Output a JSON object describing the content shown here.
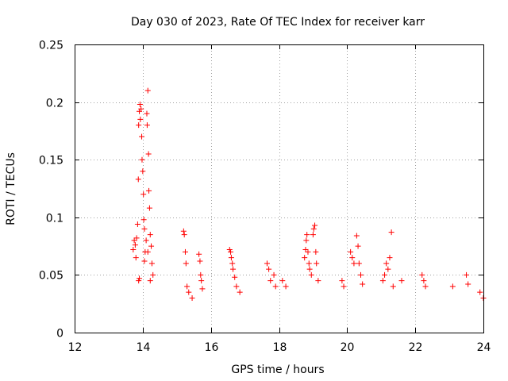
{
  "chart_data": {
    "type": "scatter",
    "title": "Day 030 of 2023, Rate Of TEC Index for receiver karr",
    "xlabel": "GPS time / hours",
    "ylabel": "ROTI / TECUs",
    "xlim": [
      12,
      24
    ],
    "ylim": [
      0,
      0.25
    ],
    "x_ticks": [
      "12",
      "14",
      "16",
      "18",
      "20",
      "22",
      "24"
    ],
    "y_ticks": [
      "0",
      "0.05",
      "0.1",
      "0.15",
      "0.2",
      "0.25"
    ],
    "grid": true,
    "marker": "plus",
    "series_color": "#ff0000",
    "series": [
      {
        "name": "ROTI",
        "points": [
          [
            13.72,
            0.072
          ],
          [
            13.75,
            0.08
          ],
          [
            13.78,
            0.076
          ],
          [
            13.8,
            0.065
          ],
          [
            13.82,
            0.082
          ],
          [
            13.85,
            0.094
          ],
          [
            13.87,
            0.133
          ],
          [
            13.88,
            0.18
          ],
          [
            13.9,
            0.192
          ],
          [
            13.92,
            0.198
          ],
          [
            13.93,
            0.185
          ],
          [
            13.95,
            0.194
          ],
          [
            13.97,
            0.17
          ],
          [
            13.98,
            0.15
          ],
          [
            14.0,
            0.14
          ],
          [
            14.02,
            0.12
          ],
          [
            14.03,
            0.098
          ],
          [
            14.05,
            0.09
          ],
          [
            14.07,
            0.07
          ],
          [
            14.1,
            0.08
          ],
          [
            14.12,
            0.19
          ],
          [
            14.13,
            0.18
          ],
          [
            14.15,
            0.21
          ],
          [
            14.17,
            0.155
          ],
          [
            14.18,
            0.123
          ],
          [
            14.2,
            0.108
          ],
          [
            14.22,
            0.085
          ],
          [
            14.25,
            0.075
          ],
          [
            14.27,
            0.06
          ],
          [
            14.3,
            0.05
          ],
          [
            13.88,
            0.045
          ],
          [
            13.9,
            0.047
          ],
          [
            14.05,
            0.062
          ],
          [
            14.15,
            0.07
          ],
          [
            14.22,
            0.045
          ],
          [
            15.2,
            0.088
          ],
          [
            15.22,
            0.085
          ],
          [
            15.25,
            0.07
          ],
          [
            15.27,
            0.06
          ],
          [
            15.3,
            0.04
          ],
          [
            15.35,
            0.035
          ],
          [
            15.45,
            0.03
          ],
          [
            15.65,
            0.068
          ],
          [
            15.68,
            0.062
          ],
          [
            15.7,
            0.05
          ],
          [
            15.72,
            0.045
          ],
          [
            15.75,
            0.038
          ],
          [
            16.55,
            0.072
          ],
          [
            16.58,
            0.07
          ],
          [
            16.6,
            0.065
          ],
          [
            16.63,
            0.06
          ],
          [
            16.65,
            0.055
          ],
          [
            16.7,
            0.048
          ],
          [
            16.75,
            0.04
          ],
          [
            16.85,
            0.035
          ],
          [
            17.65,
            0.06
          ],
          [
            17.7,
            0.055
          ],
          [
            17.75,
            0.045
          ],
          [
            17.85,
            0.05
          ],
          [
            17.9,
            0.04
          ],
          [
            18.1,
            0.045
          ],
          [
            18.2,
            0.04
          ],
          [
            18.75,
            0.065
          ],
          [
            18.78,
            0.072
          ],
          [
            18.8,
            0.08
          ],
          [
            18.82,
            0.085
          ],
          [
            18.85,
            0.07
          ],
          [
            18.88,
            0.06
          ],
          [
            18.9,
            0.055
          ],
          [
            18.95,
            0.05
          ],
          [
            19.0,
            0.085
          ],
          [
            19.02,
            0.09
          ],
          [
            19.05,
            0.093
          ],
          [
            19.08,
            0.07
          ],
          [
            19.1,
            0.06
          ],
          [
            19.15,
            0.045
          ],
          [
            19.85,
            0.045
          ],
          [
            19.9,
            0.04
          ],
          [
            20.1,
            0.07
          ],
          [
            20.15,
            0.065
          ],
          [
            20.2,
            0.06
          ],
          [
            20.28,
            0.084
          ],
          [
            20.32,
            0.075
          ],
          [
            20.35,
            0.06
          ],
          [
            20.4,
            0.05
          ],
          [
            20.45,
            0.042
          ],
          [
            21.05,
            0.045
          ],
          [
            21.1,
            0.05
          ],
          [
            21.15,
            0.06
          ],
          [
            21.2,
            0.055
          ],
          [
            21.25,
            0.065
          ],
          [
            21.3,
            0.087
          ],
          [
            21.35,
            0.04
          ],
          [
            21.6,
            0.045
          ],
          [
            22.2,
            0.05
          ],
          [
            22.25,
            0.045
          ],
          [
            22.3,
            0.04
          ],
          [
            23.1,
            0.04
          ],
          [
            23.5,
            0.05
          ],
          [
            23.55,
            0.042
          ],
          [
            23.9,
            0.035
          ],
          [
            24.0,
            0.03
          ]
        ]
      }
    ]
  }
}
